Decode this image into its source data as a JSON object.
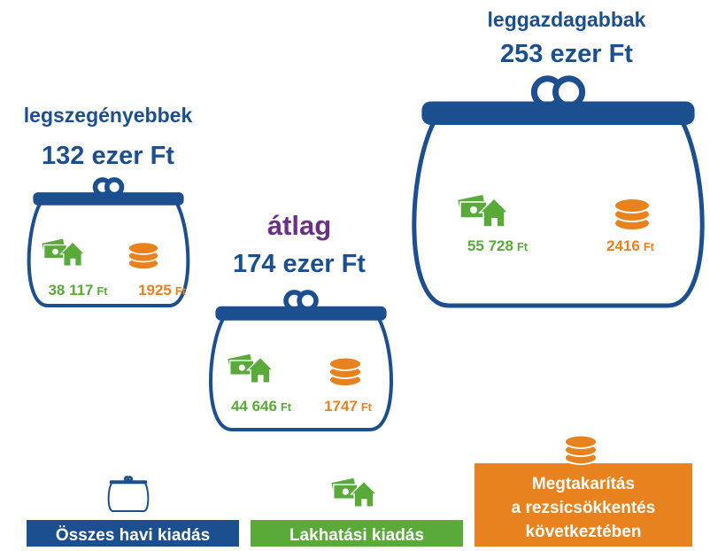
{
  "purses": [
    {
      "label": "legszegényebbek",
      "total": "132 ezer Ft",
      "housing": {
        "amount": "38 117",
        "unit": "Ft"
      },
      "savings": {
        "amount": "1925",
        "unit": "Ft"
      }
    },
    {
      "label": "átlag",
      "total": "174 ezer Ft",
      "housing": {
        "amount": "44 646",
        "unit": "Ft"
      },
      "savings": {
        "amount": "1747",
        "unit": "Ft"
      }
    },
    {
      "label": "leggazdagabbak",
      "total": "253 ezer Ft",
      "housing": {
        "amount": "55 728",
        "unit": "Ft"
      },
      "savings": {
        "amount": "2416",
        "unit": "Ft"
      }
    }
  ],
  "legend": {
    "total": "Összes havi kiadás",
    "housing": "Lakhatási kiadás",
    "savings": [
      "Megtakarítás",
      "a rezsicsökkentés",
      "következtében"
    ]
  }
}
